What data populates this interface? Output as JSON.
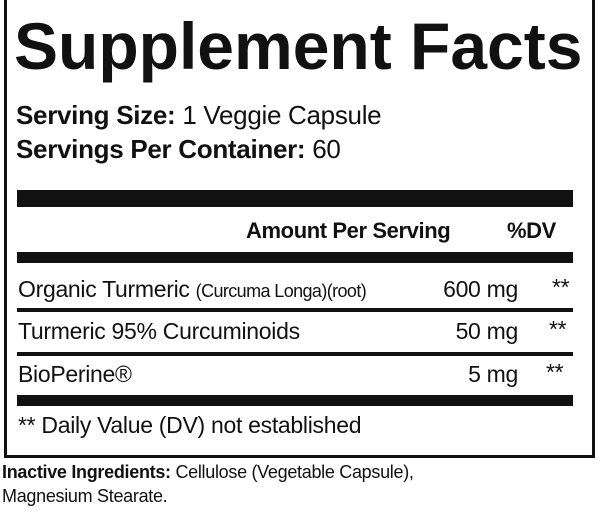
{
  "title": "Supplement Facts",
  "serving_size": {
    "label": "Serving Size:",
    "value": "1 Veggie Capsule"
  },
  "servings_per_container": {
    "label": "Servings Per Container:",
    "value": "60"
  },
  "table_header": {
    "amount": "Amount Per Serving",
    "dv": "%DV"
  },
  "rows": [
    {
      "name": "Organic Turmeric",
      "detail": "(Curcuma Longa)(root)",
      "amount": "600 mg",
      "dv": "**"
    },
    {
      "name": "Turmeric 95% Curcuminoids",
      "detail": "",
      "amount": "50 mg",
      "dv": "**"
    },
    {
      "name": "BioPerine®",
      "detail": "",
      "amount": "5 mg",
      "dv": "**"
    }
  ],
  "footnote": "** Daily Value (DV) not established",
  "inactive": {
    "label": "Inactive Ingredients:",
    "line1": "Cellulose (Vegetable Capsule),",
    "line2": "Magnesium Stearate."
  }
}
